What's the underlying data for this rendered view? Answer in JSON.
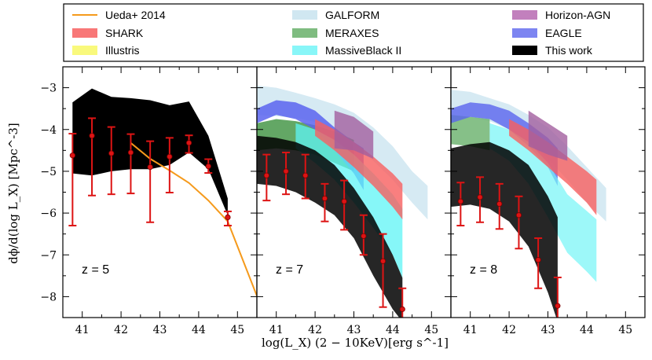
{
  "figure": {
    "ylabel": "dϕ/d(log L_X) [Mpc^-3]",
    "xlabel": "log(L_X) (2 − 10KeV)[erg s^-1]",
    "xlim": [
      40.5,
      45.5
    ],
    "ylim": [
      -8.5,
      -2.5
    ],
    "xticks": [
      41,
      42,
      43,
      44,
      45
    ],
    "yticks": [
      -8,
      -7,
      -6,
      -5,
      -4,
      -3
    ]
  },
  "legend": {
    "placement": "top",
    "entries": [
      {
        "label": "Ueda+ 2014",
        "kind": "line",
        "color": "#f59a1c"
      },
      {
        "label": "SHARK",
        "kind": "patch",
        "color": "#f75f5f"
      },
      {
        "label": "Illustris",
        "kind": "patch",
        "color": "#f8f865"
      },
      {
        "label": "GALFORM",
        "kind": "patch",
        "color": "#c8e3ef"
      },
      {
        "label": "MERAXES",
        "kind": "patch",
        "color": "#68b06a"
      },
      {
        "label": "MassiveBlack II",
        "kind": "patch",
        "color": "#73f5f7"
      },
      {
        "label": "Horizon-AGN",
        "kind": "patch",
        "color": "#b76ab2"
      },
      {
        "label": "EAGLE",
        "kind": "patch",
        "color": "#6670ee"
      },
      {
        "label": "This work",
        "kind": "patch",
        "color": "#000000"
      }
    ]
  },
  "chart_data": [
    {
      "type": "area",
      "panel_label": "z = 5",
      "series": [
        {
          "name": "This work",
          "kind": "band",
          "color": "#000000",
          "opacity": 1.0,
          "x": [
            40.75,
            41.25,
            41.75,
            42.25,
            42.75,
            43.25,
            43.75,
            44.25,
            44.75
          ],
          "upper": [
            -3.35,
            -3.02,
            -3.22,
            -3.25,
            -3.3,
            -3.42,
            -3.33,
            -4.15,
            -5.65
          ],
          "lower": [
            -5.05,
            -5.1,
            -5.0,
            -4.95,
            -4.95,
            -4.85,
            -4.55,
            -4.95,
            -6.05
          ]
        },
        {
          "name": "Ueda+ 2014",
          "kind": "line",
          "color": "#f59a1c",
          "x": [
            42.25,
            42.75,
            43.25,
            43.75,
            44.25,
            44.75,
            45.5
          ],
          "y": [
            -4.32,
            -4.7,
            -4.98,
            -5.28,
            -5.7,
            -6.2,
            -7.98
          ]
        },
        {
          "name": "data",
          "kind": "errorbar",
          "color": "#dd1414",
          "x": [
            40.75,
            41.25,
            41.75,
            42.25,
            42.75,
            43.25,
            43.75,
            44.25,
            44.75
          ],
          "y": [
            -4.62,
            -4.15,
            -4.57,
            -4.55,
            -4.9,
            -4.65,
            -4.32,
            -4.88,
            -6.1
          ],
          "yerr_low": [
            1.68,
            1.43,
            0.98,
            0.98,
            1.32,
            0.86,
            0.24,
            0.16,
            0.2
          ],
          "yerr_high": [
            0.52,
            0.42,
            0.63,
            0.44,
            0.62,
            0.45,
            0.18,
            0.17,
            0.14
          ]
        }
      ]
    },
    {
      "type": "area",
      "panel_label": "z = 7",
      "series": [
        {
          "name": "GALFORM",
          "kind": "band",
          "color": "#c8e3ef",
          "opacity": 0.75,
          "x": [
            40.5,
            41.0,
            41.5,
            42.0,
            42.5,
            43.0,
            43.5,
            44.0,
            44.5,
            44.9
          ],
          "upper": [
            -2.95,
            -3.0,
            -3.12,
            -3.25,
            -3.4,
            -3.6,
            -3.95,
            -4.4,
            -5.0,
            -5.35
          ],
          "lower": [
            -3.65,
            -3.68,
            -3.72,
            -3.82,
            -4.05,
            -4.35,
            -4.75,
            -5.2,
            -5.75,
            -6.15
          ]
        },
        {
          "name": "MERAXES",
          "kind": "band",
          "color": "#2f8a32",
          "opacity": 0.75,
          "x": [
            40.5,
            41.0,
            41.5,
            42.0,
            42.5,
            43.0
          ],
          "upper": [
            -3.85,
            -3.75,
            -3.8,
            -3.9,
            -4.05,
            -4.25
          ],
          "lower": [
            -4.5,
            -4.45,
            -4.5,
            -4.6,
            -4.8,
            -5.0
          ]
        },
        {
          "name": "EAGLE",
          "kind": "band",
          "color": "#5a64ee",
          "opacity": 0.85,
          "x": [
            40.5,
            41.0,
            41.5,
            42.0,
            42.5,
            43.0,
            43.25
          ],
          "upper": [
            -3.5,
            -3.3,
            -3.35,
            -3.55,
            -3.95,
            -4.3,
            -4.45
          ],
          "lower": [
            -3.85,
            -3.65,
            -3.75,
            -4.0,
            -4.5,
            -5.05,
            -5.45
          ]
        },
        {
          "name": "MassiveBlack II",
          "kind": "band",
          "color": "#5ef4f5",
          "opacity": 0.75,
          "x": [
            41.5,
            42.0,
            42.5,
            43.0,
            43.5,
            44.0,
            44.25
          ],
          "upper": [
            -3.85,
            -4.0,
            -4.25,
            -4.6,
            -5.05,
            -5.55,
            -5.9
          ],
          "lower": [
            -4.45,
            -4.8,
            -5.2,
            -5.75,
            -6.35,
            -7.0,
            -7.55
          ]
        },
        {
          "name": "SHARK",
          "kind": "band",
          "color": "#f75f5f",
          "opacity": 0.8,
          "x": [
            42.0,
            42.5,
            43.0,
            43.5,
            44.0,
            44.25
          ],
          "upper": [
            -3.75,
            -4.0,
            -4.3,
            -4.65,
            -5.05,
            -5.3
          ],
          "lower": [
            -4.15,
            -4.5,
            -4.9,
            -5.35,
            -5.85,
            -6.15
          ]
        },
        {
          "name": "Horizon-AGN",
          "kind": "band",
          "color": "#a35f9f",
          "opacity": 0.8,
          "x": [
            42.5,
            43.0,
            43.5
          ],
          "upper": [
            -3.55,
            -3.7,
            -4.05
          ],
          "lower": [
            -4.45,
            -4.5,
            -4.7
          ]
        },
        {
          "name": "This work",
          "kind": "band",
          "color": "#000000",
          "opacity": 0.85,
          "x": [
            40.5,
            41.0,
            41.5,
            42.0,
            42.5,
            43.0,
            43.5,
            44.0,
            44.25
          ],
          "upper": [
            -4.15,
            -4.2,
            -4.3,
            -4.5,
            -4.85,
            -5.4,
            -6.1,
            -7.0,
            -7.55
          ],
          "lower": [
            -5.3,
            -5.35,
            -5.5,
            -5.75,
            -6.05,
            -6.6,
            -7.5,
            -8.3,
            -8.6
          ]
        },
        {
          "name": "data",
          "kind": "errorbar",
          "color": "#dd1414",
          "x": [
            40.75,
            41.25,
            41.75,
            42.25,
            42.75,
            43.25,
            43.75,
            44.25
          ],
          "y": [
            -5.1,
            -5.0,
            -5.1,
            -5.65,
            -5.72,
            -6.55,
            -7.15,
            -8.3
          ],
          "yerr_low": [
            0.6,
            0.55,
            0.55,
            0.55,
            0.68,
            0.45,
            1.1,
            0.6
          ],
          "yerr_high": [
            0.5,
            0.45,
            0.5,
            0.35,
            0.5,
            0.5,
            0.65,
            0.5
          ]
        }
      ]
    },
    {
      "type": "area",
      "panel_label": "z = 8",
      "series": [
        {
          "name": "GALFORM",
          "kind": "band",
          "color": "#c8e3ef",
          "opacity": 0.75,
          "x": [
            40.5,
            41.0,
            41.5,
            42.0,
            42.5,
            43.0,
            43.5,
            44.0,
            44.5
          ],
          "upper": [
            -3.05,
            -3.1,
            -3.25,
            -3.4,
            -3.65,
            -3.95,
            -4.4,
            -4.9,
            -5.4
          ],
          "lower": [
            -3.65,
            -3.7,
            -3.8,
            -4.0,
            -4.3,
            -4.7,
            -5.2,
            -5.75,
            -6.2
          ]
        },
        {
          "name": "MERAXES",
          "kind": "band",
          "color": "#68b06a",
          "opacity": 0.8,
          "x": [
            40.5,
            41.0,
            41.5
          ],
          "upper": [
            -3.65,
            -3.7,
            -3.75
          ],
          "lower": [
            -4.35,
            -4.4,
            -4.5
          ]
        },
        {
          "name": "EAGLE",
          "kind": "band",
          "color": "#5a64ee",
          "opacity": 0.8,
          "x": [
            40.5,
            41.0,
            41.5,
            42.0,
            42.5,
            43.0,
            43.25
          ],
          "upper": [
            -3.5,
            -3.35,
            -3.4,
            -3.55,
            -3.85,
            -4.2,
            -4.45
          ],
          "lower": [
            -3.85,
            -3.7,
            -3.75,
            -4.0,
            -4.4,
            -4.9,
            -5.35
          ]
        },
        {
          "name": "MassiveBlack II",
          "kind": "band",
          "color": "#73f5f7",
          "opacity": 0.7,
          "x": [
            41.5,
            42.0,
            42.5,
            43.0,
            43.5,
            44.0,
            44.25
          ],
          "upper": [
            -3.85,
            -4.0,
            -4.3,
            -4.8,
            -5.55,
            -5.95,
            -6.15
          ],
          "lower": [
            -4.45,
            -4.75,
            -5.3,
            -6.1,
            -6.95,
            -7.4,
            -7.65
          ]
        },
        {
          "name": "SHARK",
          "kind": "band",
          "color": "#f75f5f",
          "opacity": 0.8,
          "x": [
            42.0,
            42.5,
            43.0,
            43.5,
            44.0,
            44.25
          ],
          "upper": [
            -3.75,
            -4.0,
            -4.3,
            -4.65,
            -5.0,
            -5.2
          ],
          "lower": [
            -4.15,
            -4.5,
            -4.9,
            -5.3,
            -5.75,
            -6.05
          ]
        },
        {
          "name": "Horizon-AGN",
          "kind": "band",
          "color": "#a35f9f",
          "opacity": 0.8,
          "x": [
            42.5,
            43.0,
            43.5
          ],
          "upper": [
            -3.55,
            -3.85,
            -4.15
          ],
          "lower": [
            -4.4,
            -4.6,
            -4.75
          ]
        },
        {
          "name": "This work",
          "kind": "band",
          "color": "#000000",
          "opacity": 0.85,
          "x": [
            40.5,
            41.0,
            41.5,
            42.0,
            42.5,
            43.0,
            43.25
          ],
          "upper": [
            -4.45,
            -4.35,
            -4.3,
            -4.5,
            -4.85,
            -5.6,
            -6.1
          ],
          "lower": [
            -5.85,
            -5.8,
            -5.9,
            -6.2,
            -6.8,
            -7.9,
            -8.6
          ]
        },
        {
          "name": "data",
          "kind": "errorbar",
          "color": "#dd1414",
          "x": [
            40.75,
            41.25,
            41.75,
            42.25,
            42.75,
            43.25
          ],
          "y": [
            -5.72,
            -5.62,
            -5.78,
            -6.05,
            -7.12,
            -8.22
          ],
          "yerr_low": [
            0.58,
            0.6,
            0.6,
            0.8,
            0.68,
            0.38
          ],
          "yerr_high": [
            0.45,
            0.48,
            0.48,
            0.45,
            0.52,
            0.68
          ]
        }
      ]
    }
  ]
}
